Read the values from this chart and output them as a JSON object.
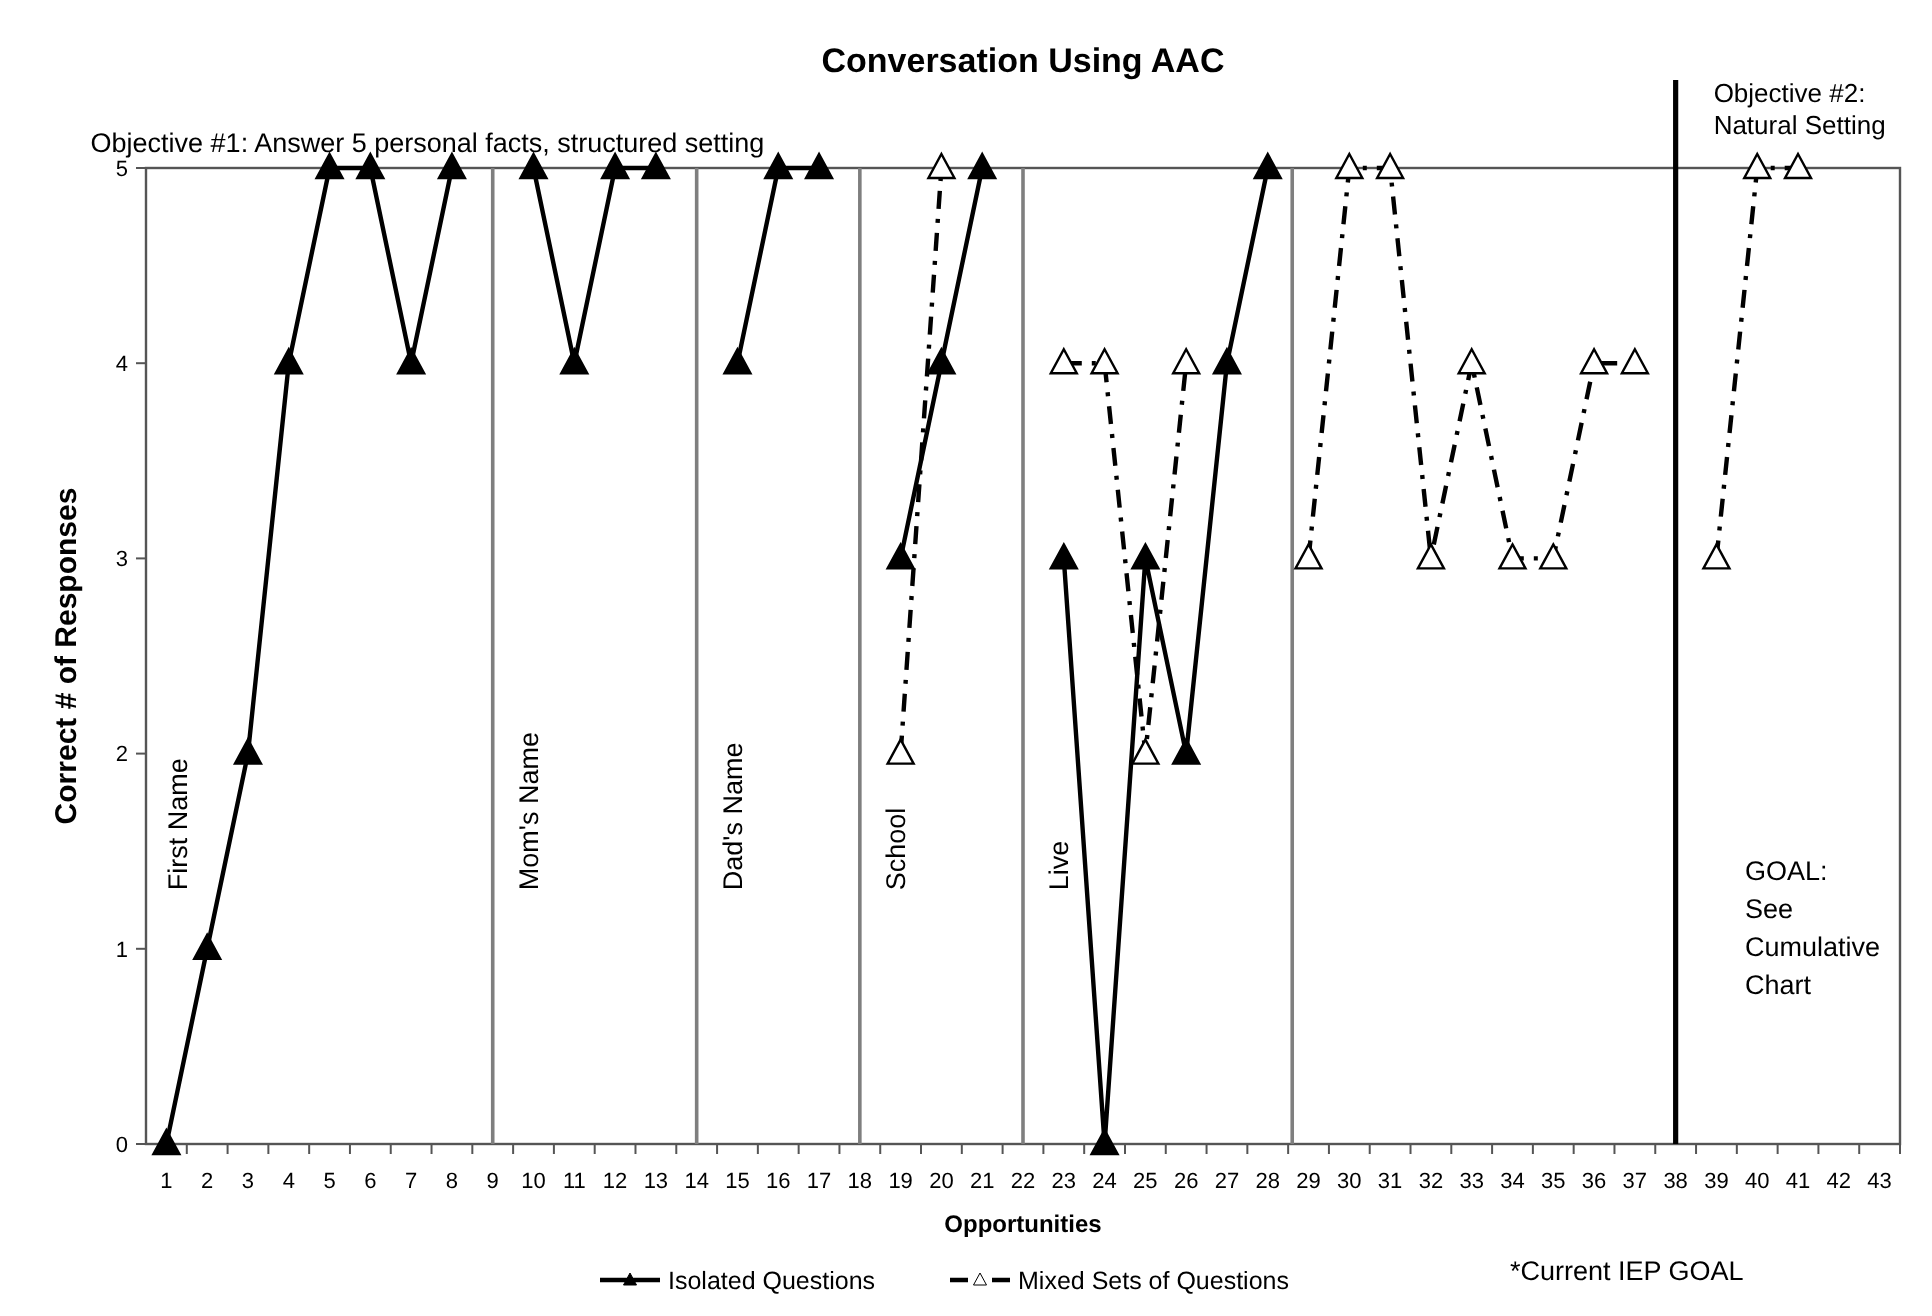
{
  "chart_data": {
    "type": "line",
    "title": "Conversation Using AAC",
    "xlabel": "Opportunities",
    "ylabel": "Correct # of Responses",
    "x": [
      1,
      2,
      3,
      4,
      5,
      6,
      7,
      8,
      9,
      10,
      11,
      12,
      13,
      14,
      15,
      16,
      17,
      18,
      19,
      20,
      21,
      22,
      23,
      24,
      25,
      26,
      27,
      28,
      29,
      30,
      31,
      32,
      33,
      34,
      35,
      36,
      37,
      38,
      39,
      40,
      41
    ],
    "series": [
      {
        "name": "Isolated Questions",
        "color": "#000000",
        "line_style": "solid",
        "marker": "triangle",
        "values": [
          0,
          1,
          2,
          4,
          5,
          5,
          4,
          5,
          null,
          5,
          4,
          5,
          5,
          null,
          4,
          5,
          5,
          null,
          3,
          4,
          5,
          null,
          3,
          0,
          3,
          2,
          4,
          5,
          null,
          null,
          null,
          null,
          null,
          null,
          null,
          null,
          null,
          null,
          null,
          null,
          null
        ]
      },
      {
        "name": "Mixed Sets of Questions",
        "color": "#000000",
        "line_style": "dashed",
        "marker": "triangle",
        "values": [
          null,
          null,
          null,
          null,
          null,
          null,
          null,
          null,
          null,
          null,
          null,
          null,
          null,
          null,
          null,
          null,
          null,
          null,
          2,
          5,
          null,
          null,
          4,
          4,
          2,
          4,
          null,
          null,
          3,
          5,
          5,
          3,
          4,
          3,
          3,
          4,
          4,
          null,
          3,
          5,
          5
        ]
      }
    ],
    "xlim": [
      0.5,
      43.5
    ],
    "xticks": [
      1,
      2,
      3,
      4,
      5,
      6,
      7,
      8,
      9,
      10,
      11,
      12,
      13,
      14,
      15,
      16,
      17,
      18,
      19,
      20,
      21,
      22,
      23,
      24,
      25,
      26,
      27,
      28,
      29,
      30,
      31,
      32,
      33,
      34,
      35,
      36,
      37,
      38,
      39,
      40,
      41,
      42,
      43
    ],
    "ylim": [
      0,
      5
    ],
    "yticks": [
      0,
      1,
      2,
      3,
      4,
      5
    ],
    "ref_lines": [
      {
        "axis": "x",
        "value": 9,
        "color": "#7f7f7f"
      },
      {
        "axis": "x",
        "value": 14,
        "color": "#7f7f7f"
      },
      {
        "axis": "x",
        "value": 18,
        "color": "#7f7f7f"
      },
      {
        "axis": "x",
        "value": 22,
        "color": "#7f7f7f"
      },
      {
        "axis": "x",
        "value": 28.6,
        "color": "#7f7f7f"
      },
      {
        "axis": "x",
        "value": 38,
        "color": "#000000",
        "label": "Objective #2:\nNatural Setting"
      }
    ],
    "annotations": [
      "Objective #1:  Answer 5 personal facts, structured setting",
      "First Name",
      "Mom's Name",
      "Dad's Name",
      "School",
      "Live",
      "GOAL:\nSee\nCumulative\nChart",
      "*Current IEP GOAL"
    ],
    "legend": "bottom",
    "grid": false
  }
}
